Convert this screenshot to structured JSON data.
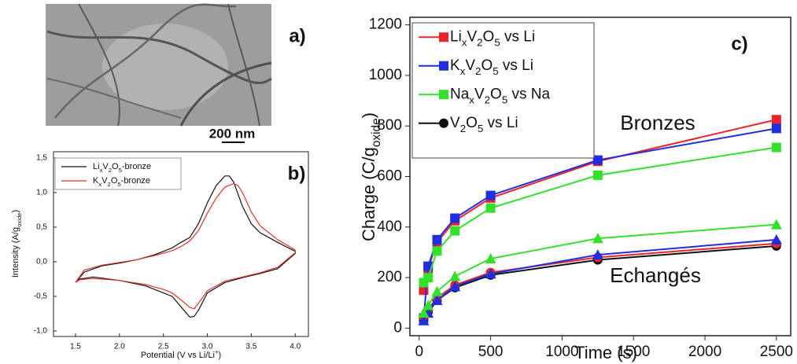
{
  "image_panel": {
    "label": "a)",
    "scale_bar": "200 nm"
  },
  "chart_data": [
    {
      "type": "line",
      "panel_label": "b)",
      "x_label": "Potential (V vs Li/Li+)",
      "y_label": "Intensity (A/goxide)",
      "xlim": [
        1.25,
        4.15
      ],
      "ylim": [
        -1.08,
        1.59
      ],
      "xticks": [
        1.5,
        {
          "value": 2,
          "label": "2.0"
        },
        2.5,
        {
          "value": 3,
          "label": "3.0"
        },
        3.5,
        {
          "value": 4,
          "label": "4.0"
        }
      ],
      "yticks": [
        {
          "value": -1,
          "label": "-1,0"
        },
        {
          "value": -0.5,
          "label": "-0,5"
        },
        {
          "value": 0,
          "label": "0,0"
        },
        {
          "value": 0.5,
          "label": "0,5"
        },
        {
          "value": 1,
          "label": "1,0"
        },
        {
          "value": 1.5,
          "label": "1,5"
        }
      ],
      "legend": "upper left",
      "series": [
        {
          "name": "LixV2O5-bronze",
          "color": "#111111",
          "x": [
            1.5,
            1.6,
            1.8,
            2.0,
            2.2,
            2.4,
            2.6,
            2.7,
            2.8,
            2.9,
            3.0,
            3.1,
            3.2,
            3.25,
            3.3,
            3.4,
            3.5,
            3.6,
            3.8,
            4.0,
            4.0,
            3.8,
            3.6,
            3.4,
            3.2,
            3.0,
            2.9,
            2.85,
            2.8,
            2.7,
            2.6,
            2.5,
            2.3,
            2.0,
            1.7,
            1.55,
            1.5
          ],
          "values": [
            -0.3,
            -0.15,
            -0.06,
            -0.02,
            0.03,
            0.1,
            0.2,
            0.28,
            0.35,
            0.55,
            0.85,
            1.1,
            1.24,
            1.24,
            1.15,
            0.8,
            0.55,
            0.42,
            0.28,
            0.15,
            0.12,
            -0.1,
            -0.17,
            -0.23,
            -0.3,
            -0.45,
            -0.7,
            -0.79,
            -0.8,
            -0.65,
            -0.5,
            -0.45,
            -0.35,
            -0.27,
            -0.22,
            -0.25,
            -0.3
          ]
        },
        {
          "name": "KxV2O5-bronze",
          "color": "#e0302a",
          "x": [
            1.5,
            1.6,
            1.8,
            2.0,
            2.2,
            2.4,
            2.6,
            2.7,
            2.8,
            2.9,
            3.0,
            3.1,
            3.2,
            3.3,
            3.35,
            3.4,
            3.5,
            3.6,
            3.8,
            4.0,
            4.0,
            3.8,
            3.6,
            3.4,
            3.2,
            3.0,
            2.9,
            2.85,
            2.8,
            2.7,
            2.6,
            2.5,
            2.3,
            2.0,
            1.7,
            1.55,
            1.5
          ],
          "values": [
            -0.3,
            -0.12,
            -0.05,
            -0.01,
            0.03,
            0.09,
            0.16,
            0.22,
            0.3,
            0.45,
            0.7,
            0.92,
            1.08,
            1.13,
            1.1,
            1.0,
            0.72,
            0.52,
            0.32,
            0.17,
            0.13,
            -0.08,
            -0.16,
            -0.22,
            -0.28,
            -0.42,
            -0.6,
            -0.68,
            -0.66,
            -0.55,
            -0.45,
            -0.4,
            -0.33,
            -0.27,
            -0.24,
            -0.26,
            -0.3
          ]
        }
      ]
    },
    {
      "type": "line",
      "panel_label": "c)",
      "x_label": "Time (s)",
      "y_label": "Charge (C/goxide)",
      "annotations": [
        "Bronzes",
        "Echangés"
      ],
      "xlim": [
        -65,
        2600
      ],
      "ylim": [
        -30,
        1230
      ],
      "xticks": [
        0,
        500,
        1000,
        1500,
        2000,
        2500
      ],
      "yticks": [
        0,
        200,
        400,
        600,
        800,
        1000,
        1200
      ],
      "legend": "upper left",
      "x": [
        31.25,
        62.5,
        125,
        250,
        500,
        1250,
        2500
      ],
      "series": [
        {
          "name": "LixV2O5 vs Li",
          "color": "#e8232a",
          "marker": "square",
          "values": [
            150,
            235,
            340,
            425,
            515,
            660,
            825
          ]
        },
        {
          "name": "KxV2O5 vs Li",
          "color": "#1f2fe0",
          "marker": "square",
          "values": [
            40,
            245,
            350,
            435,
            525,
            665,
            790
          ]
        },
        {
          "name": "NaxV2O5 vs Na",
          "color": "#33e02a",
          "marker": "square",
          "values": [
            180,
            200,
            305,
            385,
            475,
            605,
            715
          ]
        },
        {
          "name": "V2O5 vs Li",
          "color": "#111111",
          "marker": "circle",
          "values": [
            40,
            65,
            110,
            160,
            210,
            270,
            325
          ]
        },
        {
          "color": "#e8232a",
          "marker": "circle",
          "values": [
            45,
            75,
            120,
            170,
            220,
            280,
            335
          ]
        },
        {
          "color": "#1f2fe0",
          "marker": "triangle",
          "values": [
            30,
            60,
            110,
            165,
            215,
            290,
            350
          ]
        },
        {
          "color": "#33e02a",
          "marker": "triangle",
          "values": [
            60,
            90,
            145,
            205,
            275,
            355,
            410
          ]
        }
      ]
    }
  ]
}
